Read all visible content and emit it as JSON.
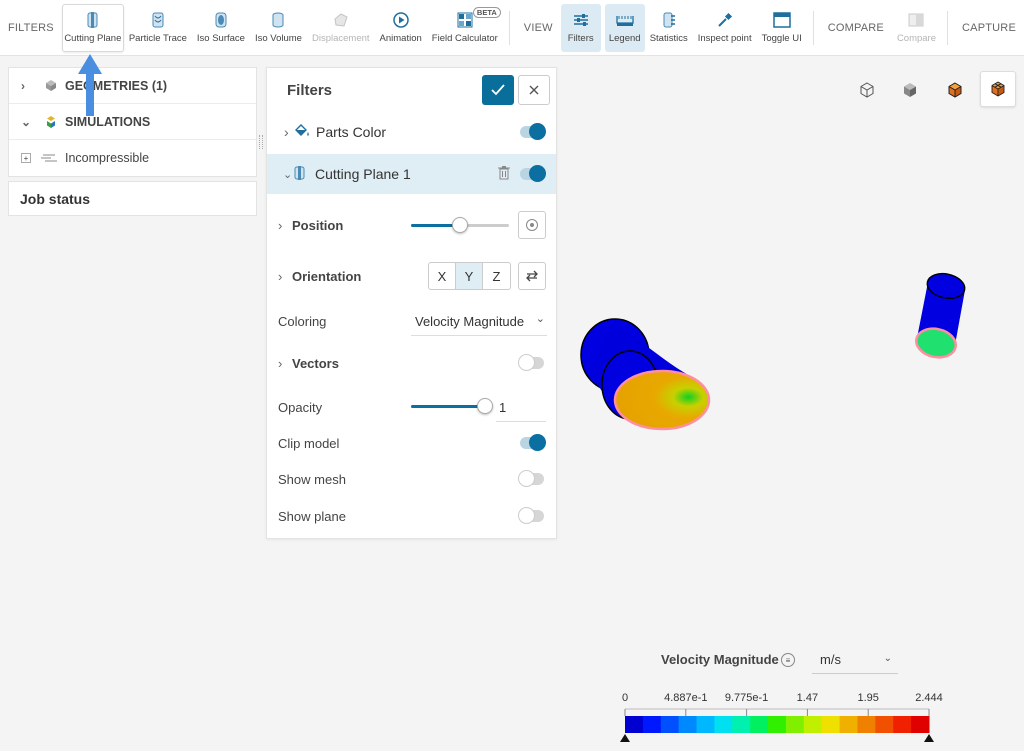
{
  "toolbar": {
    "filters_group": "FILTERS",
    "view_group": "VIEW",
    "compare_group": "COMPARE",
    "capture_group": "CAPTURE",
    "buttons": {
      "cutting_plane": "Cutting Plane",
      "particle_trace": "Particle Trace",
      "iso_surface": "Iso Surface",
      "iso_volume": "Iso Volume",
      "displacement": "Displacement",
      "animation": "Animation",
      "field_calculator": "Field Calculator",
      "field_calculator_badge": "BETA",
      "filters": "Filters",
      "legend": "Legend",
      "statistics": "Statistics",
      "inspect_point": "Inspect point",
      "toggle_ui": "Toggle UI",
      "compare": "Compare"
    }
  },
  "tree": {
    "geometries": "GEOMETRIES (1)",
    "simulations": "SIMULATIONS",
    "simulation_item": "Incompressible"
  },
  "job_status": "Job status",
  "filters_panel": {
    "title": "Filters",
    "parts_color": "Parts Color",
    "cutting_plane": "Cutting Plane 1",
    "position": "Position",
    "position_level": 0.5,
    "orientation": "Orientation",
    "axes": [
      "X",
      "Y",
      "Z"
    ],
    "selected_axis": "Y",
    "coloring_label": "Coloring",
    "coloring_value": "Velocity Magnitude",
    "vectors": "Vectors",
    "opacity_label": "Opacity",
    "opacity_value": "1",
    "clip_model": "Clip model",
    "show_mesh": "Show mesh",
    "show_plane": "Show plane"
  },
  "legend": {
    "title": "Velocity Magnitude",
    "unit": "m/s",
    "ticks": [
      "0",
      "4.887e-1",
      "9.775e-1",
      "1.47",
      "1.95",
      "2.444"
    ],
    "colors": [
      "#0000d0",
      "#0018ff",
      "#0050ff",
      "#0088ff",
      "#00b8ff",
      "#00e0f0",
      "#00f0b0",
      "#00f060",
      "#30f000",
      "#80f000",
      "#c0f000",
      "#f0e000",
      "#f0b000",
      "#f08000",
      "#f05000",
      "#f02000",
      "#e00000"
    ]
  },
  "colors": {
    "accent": "#0b6fa1",
    "arrow_annotation": "#4a8ee0"
  }
}
